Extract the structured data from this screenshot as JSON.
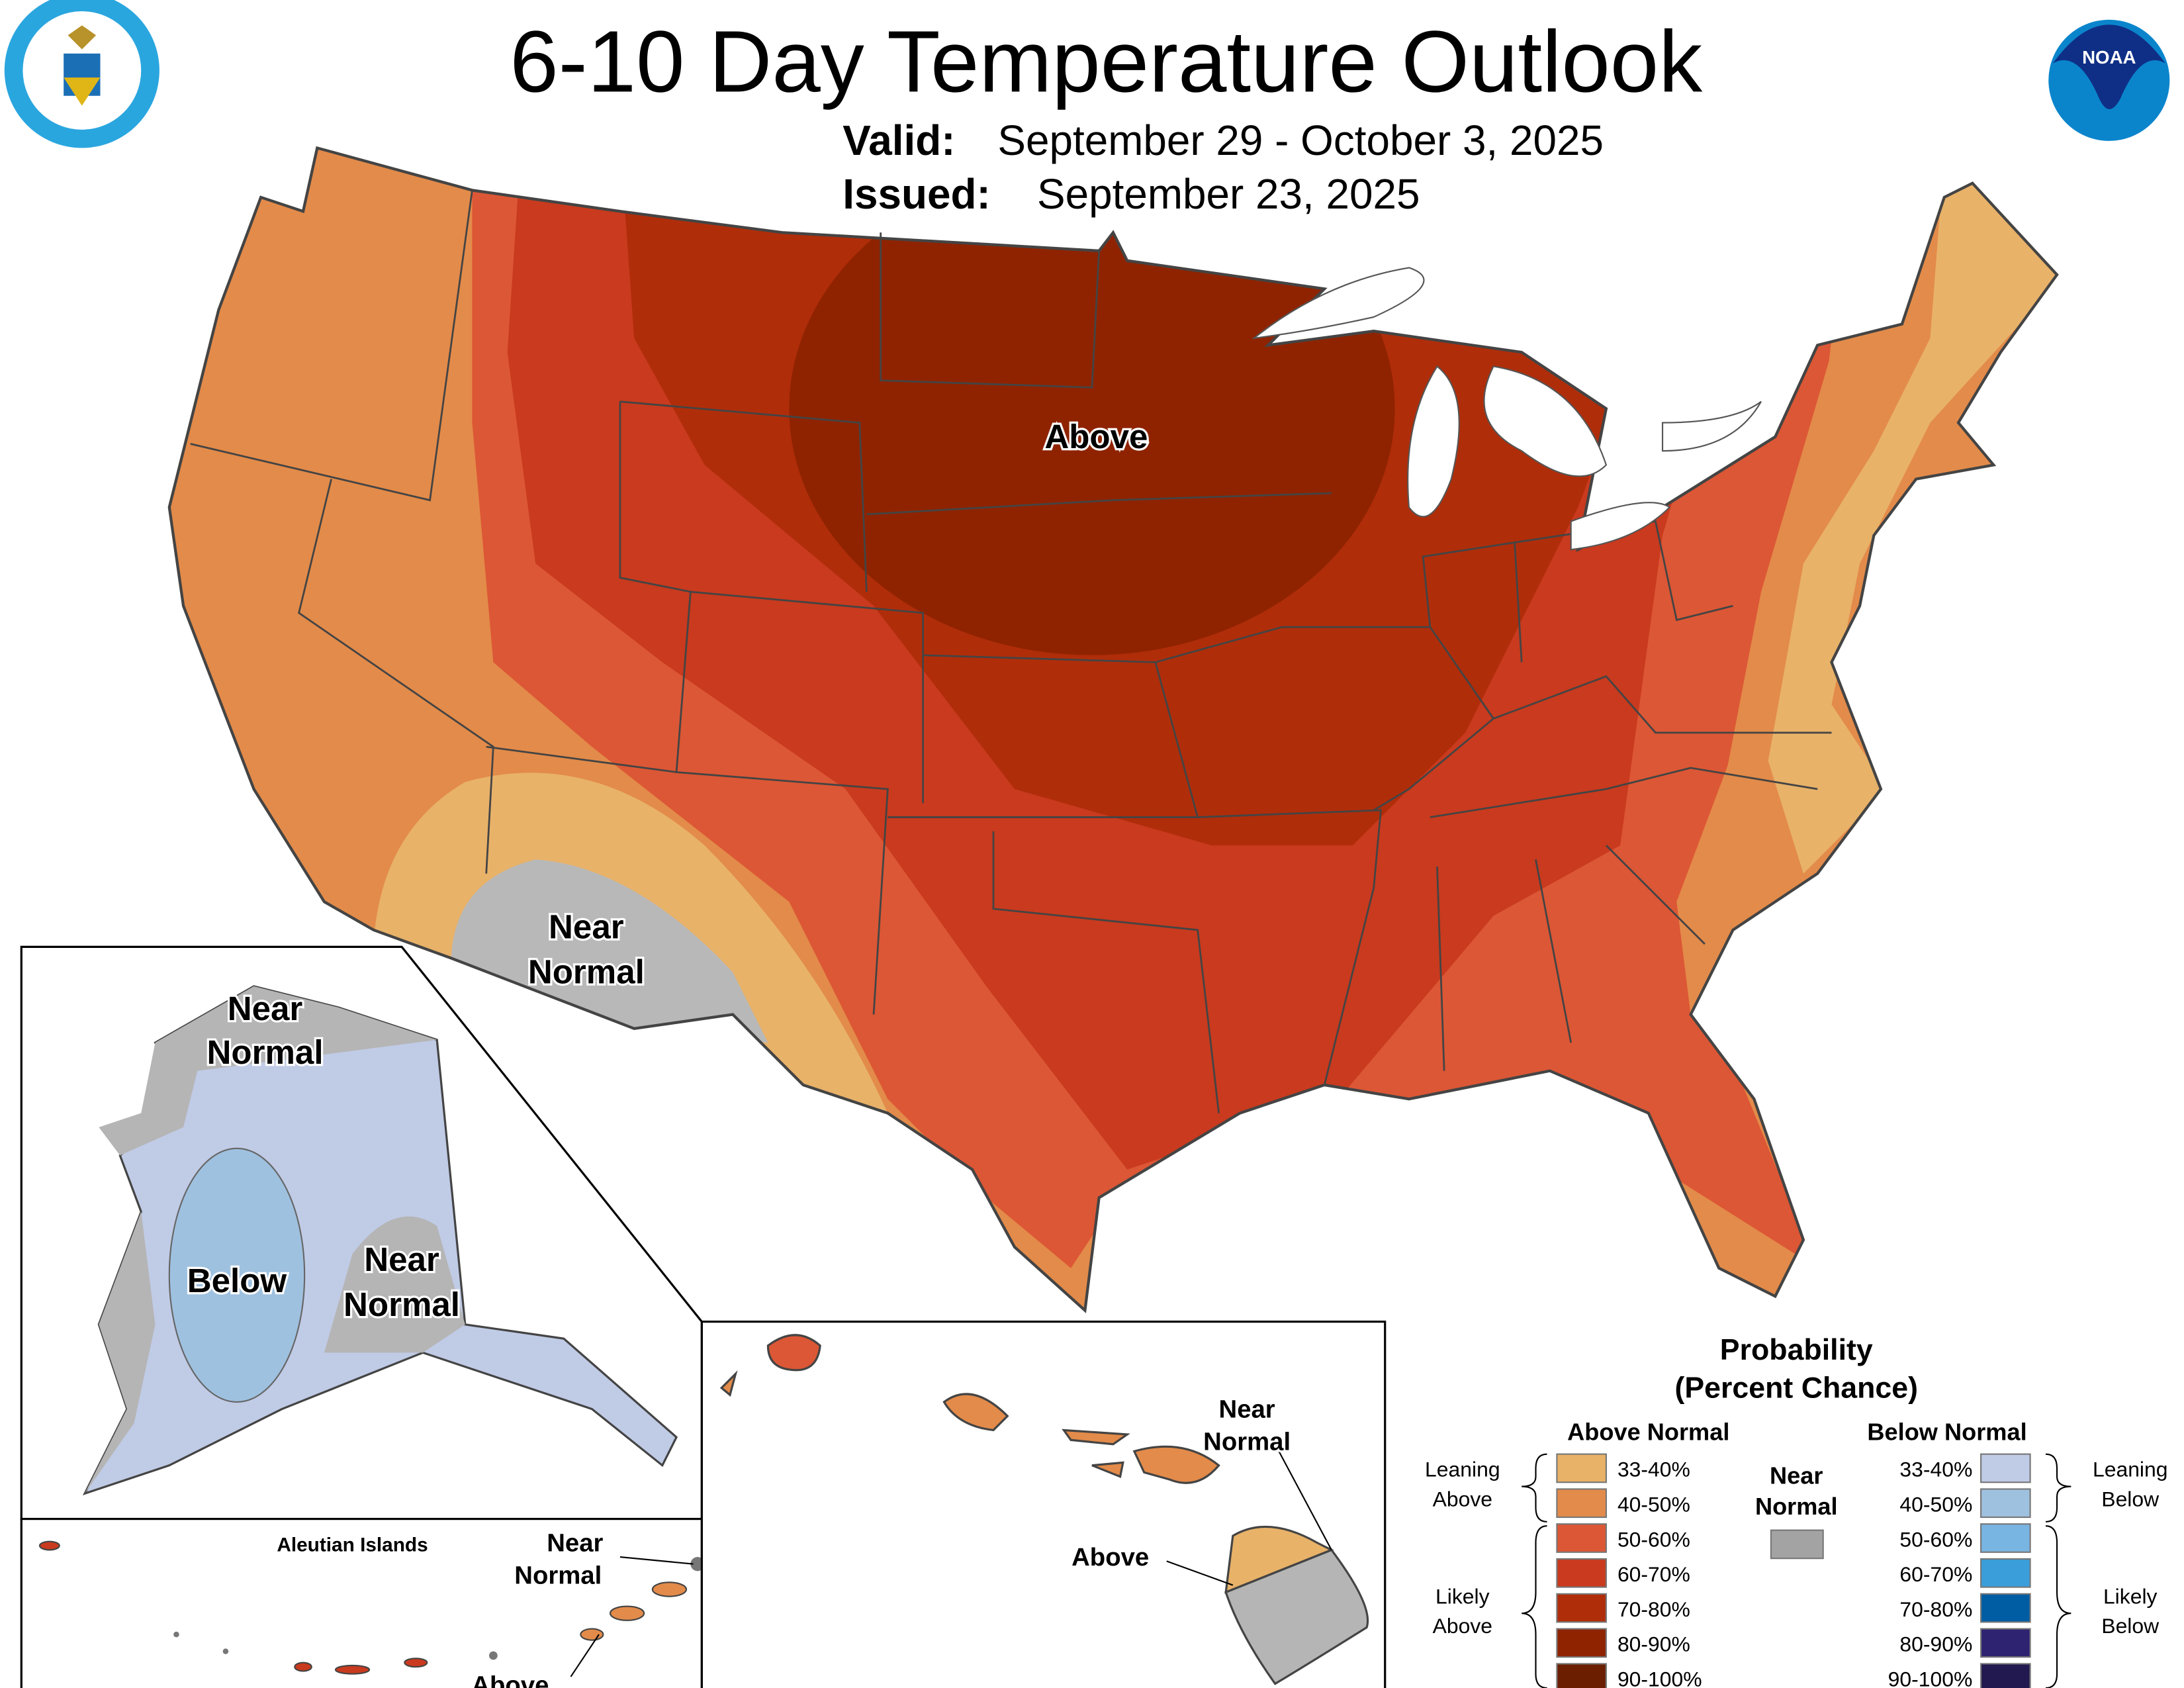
{
  "header": {
    "title": "6-10 Day Temperature Outlook",
    "valid_label": "Valid:",
    "valid_value": "September 29 - October 3, 2025",
    "issued_label": "Issued:",
    "issued_value": "September 23, 2025",
    "left_logo": "DEPARTMENT OF COMMERCE · UNITED STATES OF AMERICA",
    "right_logo": "NOAA"
  },
  "map_labels": {
    "conus_above": "Above",
    "conus_near_1": "Near",
    "conus_near_2": "Normal",
    "ak_near_n_1": "Near",
    "ak_near_n_2": "Normal",
    "ak_below": "Below",
    "ak_near_s_1": "Near",
    "ak_near_s_2": "Normal",
    "aleutian_title": "Aleutian Islands",
    "aleutian_near_1": "Near",
    "aleutian_near_2": "Normal",
    "aleutian_above": "Above",
    "hi_near_1": "Near",
    "hi_near_2": "Normal",
    "hi_above": "Above"
  },
  "legend": {
    "title_1": "Probability",
    "title_2": "(Percent Chance)",
    "above_header": "Above Normal",
    "below_header": "Below Normal",
    "near_1": "Near",
    "near_2": "Normal",
    "near_color": "#A3A3A3",
    "leaning_above_1": "Leaning",
    "leaning_above_2": "Above",
    "likely_above_1": "Likely",
    "likely_above_2": "Above",
    "leaning_below_1": "Leaning",
    "leaning_below_2": "Below",
    "likely_below_1": "Likely",
    "likely_below_2": "Below",
    "above": [
      {
        "range": "33-40%",
        "color": "#E8B269"
      },
      {
        "range": "40-50%",
        "color": "#E38B4A"
      },
      {
        "range": "50-60%",
        "color": "#DC5735"
      },
      {
        "range": "60-70%",
        "color": "#C93A1E"
      },
      {
        "range": "70-80%",
        "color": "#B02D0A"
      },
      {
        "range": "80-90%",
        "color": "#8F2300"
      },
      {
        "range": "90-100%",
        "color": "#6B1F00"
      }
    ],
    "below": [
      {
        "range": "33-40%",
        "color": "#C0CBE6"
      },
      {
        "range": "40-50%",
        "color": "#9FC1E0"
      },
      {
        "range": "50-60%",
        "color": "#79B5E2"
      },
      {
        "range": "60-70%",
        "color": "#3A9EDB"
      },
      {
        "range": "70-80%",
        "color": "#005DA3"
      },
      {
        "range": "80-90%",
        "color": "#2E2370"
      },
      {
        "range": "90-100%",
        "color": "#21194F"
      }
    ]
  }
}
